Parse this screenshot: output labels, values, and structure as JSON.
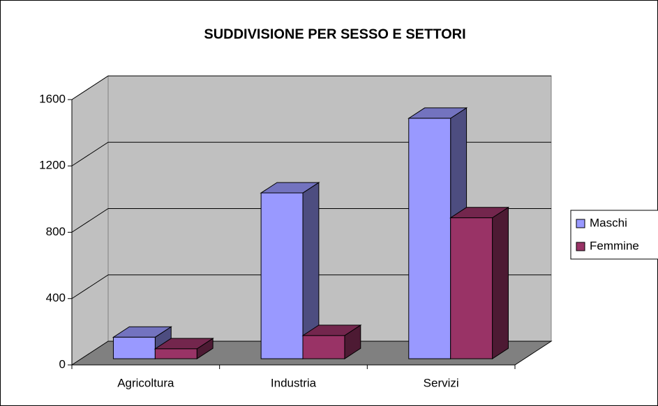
{
  "chart_data": {
    "type": "bar3d",
    "title": "SUDDIVISIONE PER SESSO E SETTORI",
    "categories": [
      "Agricoltura",
      "Industria",
      "Servizi"
    ],
    "series": [
      {
        "name": "Maschi",
        "color": "#9999ff",
        "values": [
          130,
          1000,
          1450
        ]
      },
      {
        "name": "Femmine",
        "color": "#993366",
        "values": [
          60,
          140,
          850
        ]
      }
    ],
    "ylim": [
      0,
      1600
    ],
    "yticks": [
      0,
      400,
      800,
      1200,
      1600
    ],
    "grid": true,
    "legend": "right"
  }
}
